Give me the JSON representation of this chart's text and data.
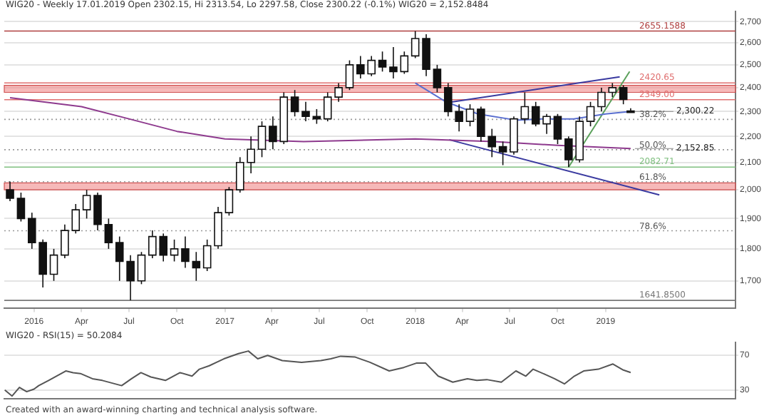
{
  "chart_data": [
    {
      "type": "candlestick",
      "title": "WIG20 - Weekly 17.01.2019 Open 2302.15, Hi 2313.54, Lo 2297.58, Close 2300.22 (-0.1%) WIG20 = 2,152.8484",
      "x": [
        "2015-11-16",
        "2015-12-07",
        "2015-12-28",
        "2016-01-18",
        "2016-02-08",
        "2016-02-29",
        "2016-03-21",
        "2016-04-11",
        "2016-05-02",
        "2016-05-23",
        "2016-06-13",
        "2016-07-04",
        "2016-07-25",
        "2016-08-15",
        "2016-09-05",
        "2016-09-26",
        "2016-10-17",
        "2016-11-07",
        "2016-11-28",
        "2016-12-19",
        "2017-01-09",
        "2017-01-30",
        "2017-02-20",
        "2017-03-13",
        "2017-04-03",
        "2017-04-24",
        "2017-05-15",
        "2017-06-05",
        "2017-06-26",
        "2017-07-17",
        "2017-08-07",
        "2017-08-28",
        "2017-09-18",
        "2017-10-09",
        "2017-10-30",
        "2017-11-20",
        "2017-12-11",
        "2018-01-01",
        "2018-01-22",
        "2018-02-12",
        "2018-03-05",
        "2018-03-26",
        "2018-04-16",
        "2018-05-07",
        "2018-05-28",
        "2018-06-18",
        "2018-07-09",
        "2018-07-30",
        "2018-08-20",
        "2018-09-10",
        "2018-10-01",
        "2018-10-22",
        "2018-11-12",
        "2018-12-03",
        "2018-12-24",
        "2019-01-14",
        "2019-02-04",
        "2019-02-18"
      ],
      "ohlc": [
        [
          2000,
          2030,
          1960,
          1970
        ],
        [
          1970,
          1990,
          1890,
          1900
        ],
        [
          1900,
          1920,
          1800,
          1820
        ],
        [
          1820,
          1830,
          1680,
          1720
        ],
        [
          1720,
          1800,
          1700,
          1780
        ],
        [
          1780,
          1880,
          1770,
          1860
        ],
        [
          1860,
          1950,
          1850,
          1930
        ],
        [
          1930,
          2000,
          1900,
          1980
        ],
        [
          1980,
          1990,
          1860,
          1880
        ],
        [
          1880,
          1900,
          1800,
          1820
        ],
        [
          1820,
          1840,
          1700,
          1760
        ],
        [
          1760,
          1780,
          1641.85,
          1700
        ],
        [
          1700,
          1790,
          1690,
          1780
        ],
        [
          1780,
          1860,
          1770,
          1840
        ],
        [
          1840,
          1850,
          1760,
          1780
        ],
        [
          1780,
          1830,
          1760,
          1800
        ],
        [
          1800,
          1840,
          1740,
          1760
        ],
        [
          1760,
          1790,
          1700,
          1740
        ],
        [
          1740,
          1830,
          1730,
          1810
        ],
        [
          1810,
          1940,
          1800,
          1920
        ],
        [
          1920,
          2010,
          1910,
          2000
        ],
        [
          2000,
          2120,
          1990,
          2100
        ],
        [
          2100,
          2200,
          2060,
          2150
        ],
        [
          2150,
          2260,
          2120,
          2240
        ],
        [
          2240,
          2280,
          2150,
          2180
        ],
        [
          2180,
          2380,
          2170,
          2360
        ],
        [
          2360,
          2390,
          2280,
          2300
        ],
        [
          2300,
          2340,
          2260,
          2280
        ],
        [
          2280,
          2310,
          2250,
          2270
        ],
        [
          2270,
          2380,
          2260,
          2360
        ],
        [
          2360,
          2420,
          2340,
          2400
        ],
        [
          2400,
          2520,
          2390,
          2500
        ],
        [
          2500,
          2540,
          2440,
          2460
        ],
        [
          2460,
          2540,
          2450,
          2520
        ],
        [
          2520,
          2560,
          2470,
          2490
        ],
        [
          2490,
          2580,
          2440,
          2470
        ],
        [
          2470,
          2560,
          2460,
          2540
        ],
        [
          2540,
          2655.1588,
          2530,
          2620
        ],
        [
          2620,
          2640,
          2450,
          2480
        ],
        [
          2480,
          2500,
          2380,
          2400
        ],
        [
          2400,
          2420,
          2280,
          2300
        ],
        [
          2300,
          2330,
          2220,
          2260
        ],
        [
          2260,
          2330,
          2240,
          2310
        ],
        [
          2310,
          2320,
          2180,
          2200
        ],
        [
          2200,
          2230,
          2120,
          2160
        ],
        [
          2160,
          2180,
          2090,
          2140
        ],
        [
          2140,
          2280,
          2130,
          2270
        ],
        [
          2270,
          2380,
          2250,
          2320
        ],
        [
          2320,
          2340,
          2240,
          2250
        ],
        [
          2250,
          2290,
          2210,
          2280
        ],
        [
          2280,
          2290,
          2170,
          2190
        ],
        [
          2190,
          2200,
          2082.71,
          2110
        ],
        [
          2110,
          2280,
          2100,
          2260
        ],
        [
          2260,
          2340,
          2240,
          2320
        ],
        [
          2320,
          2400,
          2300,
          2380
        ],
        [
          2380,
          2420,
          2360,
          2400
        ],
        [
          2400,
          2410,
          2330,
          2350
        ],
        [
          2302.15,
          2313.54,
          2297.58,
          2300.22
        ]
      ],
      "series": [
        {
          "type": "line",
          "color": "#8e3a8e",
          "x": [
            "2015-11-16",
            "2016-04-01",
            "2016-07-01",
            "2016-10-01",
            "2017-01-01",
            "2017-06-01",
            "2018-01-01",
            "2018-06-01",
            "2018-10-01",
            "2019-02-18"
          ],
          "values": [
            2357,
            2320,
            2270,
            2220,
            2190,
            2180,
            2190,
            2180,
            2165,
            2152.85
          ]
        },
        {
          "type": "line",
          "color": "#5a6fd0",
          "x": [
            "2018-01-01",
            "2018-03-01",
            "2018-05-01",
            "2018-07-13",
            "2018-09-01",
            "2018-11-01",
            "2019-01-01",
            "2019-02-18"
          ],
          "values": [
            2420,
            2340,
            2290,
            2265,
            2270,
            2270,
            2290,
            2300
          ]
        },
        {
          "type": "line",
          "color": "#3a3aa0",
          "x": [
            "2018-03-07",
            "2019-01-28"
          ],
          "values": [
            2338,
            2447
          ]
        },
        {
          "type": "line",
          "color": "#3a3aa0",
          "x": [
            "2018-03-07",
            "2019-04-14"
          ],
          "values": [
            2187,
            1982
          ]
        },
        {
          "type": "line",
          "color": "#5aa05a",
          "x": [
            "2018-10-22",
            "2019-02-16"
          ],
          "values": [
            2082.71,
            2470
          ]
        }
      ],
      "xlim": [
        "2015-11-05",
        "2019-09-07"
      ],
      "xticks": [
        {
          "value": "2016-01-01",
          "label": "2016"
        },
        {
          "value": "2016-04-01",
          "label": "Apr"
        },
        {
          "value": "2016-07-01",
          "label": "Jul"
        },
        {
          "value": "2016-10-01",
          "label": "Oct"
        },
        {
          "value": "2017-01-01",
          "label": "2017"
        },
        {
          "value": "2017-04-01",
          "label": "Apr"
        },
        {
          "value": "2017-07-01",
          "label": "Jul"
        },
        {
          "value": "2017-10-01",
          "label": "Oct"
        },
        {
          "value": "2018-01-01",
          "label": "2018"
        },
        {
          "value": "2018-04-01",
          "label": "Apr"
        },
        {
          "value": "2018-07-01",
          "label": "Jul"
        },
        {
          "value": "2018-10-01",
          "label": "Oct"
        },
        {
          "value": "2019-01-01",
          "label": "2019"
        }
      ],
      "ylim": [
        1620,
        2750
      ],
      "log": true,
      "yticks": [
        {
          "value": 1700,
          "label": "1,700"
        },
        {
          "value": 1800,
          "label": "1,800"
        },
        {
          "value": 1900,
          "label": "1,900"
        },
        {
          "value": 2000,
          "label": "2,000"
        },
        {
          "value": 2100,
          "label": "2,100"
        },
        {
          "value": 2200,
          "label": "2,200"
        },
        {
          "value": 2300,
          "label": "2,300"
        },
        {
          "value": 2400,
          "label": "2,400"
        },
        {
          "value": 2500,
          "label": "2,500"
        },
        {
          "value": 2600,
          "label": "2,600"
        },
        {
          "value": 2700,
          "label": "2,700"
        }
      ],
      "grid": "y",
      "marker": "none",
      "bands": [
        {
          "axis": "y",
          "from": 2380,
          "to": 2410,
          "color": "#f08a8a"
        },
        {
          "axis": "y",
          "from": 2000,
          "to": 2025,
          "color": "#f08a8a"
        }
      ],
      "ref_lines": [
        {
          "axis": "y",
          "value": 2655.1588,
          "label": "2655.1588",
          "color": "#b04040",
          "line_style": "solid"
        },
        {
          "axis": "y",
          "value": 2420.65,
          "label": "2420.65",
          "color": "#e07070",
          "line_style": "solid"
        },
        {
          "axis": "y",
          "value": 2349,
          "label": "2349.00",
          "color": "#e07070",
          "line_style": "solid"
        },
        {
          "axis": "y",
          "value": 2268,
          "color": "#999999",
          "line_style": "dotted"
        },
        {
          "axis": "y",
          "value": 2148.5,
          "color": "#999999",
          "line_style": "dotted"
        },
        {
          "axis": "y",
          "value": 2029,
          "color": "#999999",
          "line_style": "dotted"
        },
        {
          "axis": "y",
          "value": 1859,
          "color": "#999999",
          "line_style": "dotted"
        },
        {
          "axis": "y",
          "value": 2082.71,
          "label": "2082.71",
          "color": "#7fbf7f",
          "line_style": "solid"
        },
        {
          "axis": "y",
          "value": 1641.85,
          "label": "1641.8500",
          "color": "#777777",
          "line_style": "solid"
        }
      ],
      "annotations": [
        {
          "text": "2,300.22",
          "x": "2019-02-18",
          "y": 2300.22
        },
        {
          "text": "2,152.85",
          "x": "2019-02-18",
          "y": 2152.85
        },
        {
          "text": "38.2%",
          "y": 2268
        },
        {
          "text": "50.0%",
          "y": 2148.5
        },
        {
          "text": "61.8%",
          "y": 2029
        },
        {
          "text": "78.6%",
          "y": 1859
        }
      ]
    },
    {
      "type": "line",
      "title": "WIG20 - RSI(15) = 50.2084",
      "color": "#555555",
      "marker": "none",
      "grid": "y",
      "tick_labels": "y",
      "x": [
        "2015-11-06",
        "2015-11-20",
        "2015-12-04",
        "2015-12-18",
        "2016-01-01",
        "2016-01-10",
        "2016-01-29",
        "2016-03-02",
        "2016-03-16",
        "2016-03-30",
        "2016-04-22",
        "2016-05-11",
        "2016-06-17",
        "2016-07-06",
        "2016-07-24",
        "2016-08-12",
        "2016-09-09",
        "2016-10-07",
        "2016-10-30",
        "2016-11-13",
        "2016-12-02",
        "2016-12-30",
        "2017-01-27",
        "2017-02-15",
        "2017-03-05",
        "2017-03-24",
        "2017-04-21",
        "2017-05-28",
        "2017-07-04",
        "2017-07-23",
        "2017-08-11",
        "2017-09-08",
        "2017-10-06",
        "2017-11-12",
        "2017-12-10",
        "2018-01-03",
        "2018-01-21",
        "2018-02-14",
        "2018-03-14",
        "2018-04-11",
        "2018-04-29",
        "2018-05-18",
        "2018-06-15",
        "2018-07-13",
        "2018-08-01",
        "2018-08-15",
        "2018-09-07",
        "2018-09-25",
        "2018-10-14",
        "2018-11-02",
        "2018-11-20",
        "2018-12-18",
        "2019-01-15",
        "2019-02-04",
        "2019-02-18"
      ],
      "values": [
        30,
        23,
        33,
        28,
        31,
        35,
        41,
        52,
        50,
        49,
        43,
        41,
        35,
        43,
        50,
        45,
        41,
        50,
        46,
        54,
        58,
        66,
        72,
        75,
        66,
        70,
        64,
        62,
        64,
        66,
        69,
        68,
        62,
        52,
        56,
        61,
        61,
        46,
        39,
        43,
        41,
        42,
        39,
        52,
        46,
        54,
        48,
        43,
        37,
        46,
        52,
        54,
        60,
        53,
        50.2084
      ],
      "xlim": [
        "2015-11-05",
        "2019-09-07"
      ],
      "ylim": [
        20,
        85
      ],
      "yticks": [
        30,
        70
      ],
      "annotations": [
        "Created with an award-winning charting and technical analysis software."
      ]
    }
  ]
}
